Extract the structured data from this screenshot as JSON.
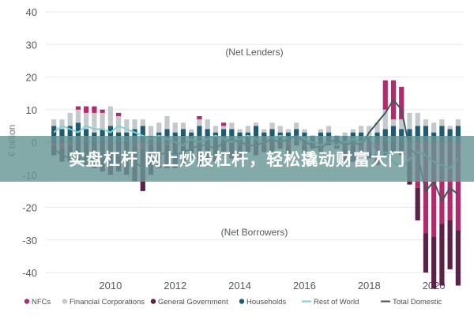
{
  "banner": {
    "text": "实盘杠杆 网上炒股杠杆，轻松撬动财富大门"
  },
  "chart_data": {
    "type": "bar",
    "ylabel": "€ billion",
    "ylim": [
      -40,
      40
    ],
    "yticks": [
      40,
      30,
      20,
      10,
      0,
      -10,
      -20,
      -30,
      -40
    ],
    "xlim": [
      2008,
      2020.9
    ],
    "xticks": [
      "2010",
      "2012",
      "2014",
      "2016",
      "2018",
      "2020"
    ],
    "annotations": {
      "top": "(Net Lenders)",
      "bottom": "(Net Borrowers)"
    },
    "colors": {
      "nfcs": "#b02a6e",
      "financial": "#c4c9ce",
      "government": "#5b2146",
      "households": "#1f5b73",
      "rest_of_world": "#7dd3d3",
      "total_domestic": "#3d5a5a"
    },
    "legend": [
      {
        "key": "nfcs",
        "label": "NFCs",
        "marker": "dot"
      },
      {
        "key": "financial",
        "label": "Financial Corporations",
        "marker": "dot"
      },
      {
        "key": "government",
        "label": "General Government",
        "marker": "dot"
      },
      {
        "key": "households",
        "label": "Households",
        "marker": "dot"
      },
      {
        "key": "rest_of_world",
        "label": "Rest of World",
        "marker": "line"
      },
      {
        "key": "total_domestic",
        "label": "Total Domestic",
        "marker": "line"
      }
    ],
    "x": [
      2008.25,
      2008.5,
      2008.75,
      2009,
      2009.25,
      2009.5,
      2009.75,
      2010,
      2010.25,
      2010.5,
      2010.75,
      2011,
      2011.25,
      2011.5,
      2011.75,
      2012,
      2012.25,
      2012.5,
      2012.75,
      2013,
      2013.25,
      2013.5,
      2013.75,
      2014,
      2014.25,
      2014.5,
      2014.75,
      2015,
      2015.25,
      2015.5,
      2015.75,
      2016,
      2016.25,
      2016.5,
      2016.75,
      2017,
      2017.25,
      2017.5,
      2017.75,
      2018,
      2018.25,
      2018.5,
      2018.75,
      2019,
      2019.25,
      2019.5,
      2019.75,
      2020,
      2020.25,
      2020.5,
      2020.75
    ],
    "series": {
      "nfcs": [
        -1,
        -2,
        -1,
        1,
        2,
        2,
        1,
        0,
        1,
        0,
        -1,
        -2,
        -1,
        0,
        -1,
        0,
        -1,
        0,
        1,
        0,
        0,
        1,
        0,
        -1,
        0,
        0,
        -1,
        0,
        0,
        -1,
        0,
        -1,
        0,
        -1,
        0,
        -1,
        -2,
        -1,
        -4,
        -3,
        -5,
        9,
        12,
        10,
        -6,
        -14,
        -28,
        -29,
        -25,
        -24,
        -27
      ],
      "financial": [
        2,
        3,
        4,
        4,
        5,
        6,
        5,
        6,
        5,
        4,
        3,
        2,
        3,
        3,
        4,
        3,
        2,
        1,
        2,
        3,
        2,
        1,
        2,
        1,
        2,
        1,
        1,
        2,
        2,
        1,
        2,
        1,
        0,
        1,
        2,
        0,
        1,
        1,
        2,
        3,
        3,
        6,
        2,
        3,
        5,
        4,
        2,
        3,
        2,
        1,
        2
      ],
      "government": [
        -3,
        -4,
        -5,
        -6,
        -7,
        -8,
        -9,
        -10,
        -9,
        -10,
        -11,
        -13,
        -9,
        -8,
        -7,
        -8,
        -6,
        -5,
        -7,
        -5,
        -6,
        -4,
        -5,
        -4,
        -3,
        -4,
        -2,
        -3,
        -2,
        -3,
        -1,
        -2,
        -2,
        -2,
        -1,
        -1,
        -4,
        -5,
        -3,
        -2,
        -2,
        -4,
        -3,
        -4,
        -7,
        -10,
        -12,
        -16,
        -19,
        -15,
        -17
      ],
      "households": [
        5,
        4,
        5,
        6,
        4,
        3,
        4,
        5,
        3,
        3,
        4,
        5,
        2,
        3,
        4,
        3,
        4,
        3,
        5,
        4,
        3,
        4,
        4,
        3,
        3,
        5,
        3,
        4,
        3,
        3,
        4,
        3,
        2,
        3,
        3,
        2,
        2,
        3,
        3,
        2,
        3,
        4,
        5,
        4,
        4,
        5,
        5,
        3,
        5,
        4,
        5
      ],
      "rest_of_world": [
        3,
        5,
        4,
        3,
        5,
        4,
        4,
        3,
        5,
        4,
        3,
        2,
        1,
        2,
        1,
        0,
        -1,
        1,
        0,
        1,
        2,
        1,
        0,
        1,
        2,
        1,
        0,
        1,
        2,
        1,
        2,
        1,
        0,
        -1,
        0,
        -1,
        0,
        1,
        0,
        2,
        -4,
        -3,
        -6,
        -8,
        -5,
        -3,
        -4,
        -6,
        -7,
        -8,
        -5
      ],
      "total_domestic": [
        -2,
        -4,
        -5,
        -4,
        -6,
        -5,
        -5,
        -3,
        -4,
        -5,
        -6,
        -8,
        -6,
        -4,
        -3,
        -4,
        -3,
        -2,
        -1,
        -1,
        -2,
        0,
        1,
        0,
        -1,
        -1,
        0,
        1,
        0,
        1,
        2,
        0,
        -1,
        -2,
        0,
        1,
        -1,
        0,
        -1,
        3,
        6,
        9,
        13,
        10,
        -2,
        -4,
        -15,
        -12,
        -18,
        -14,
        -16
      ]
    }
  }
}
